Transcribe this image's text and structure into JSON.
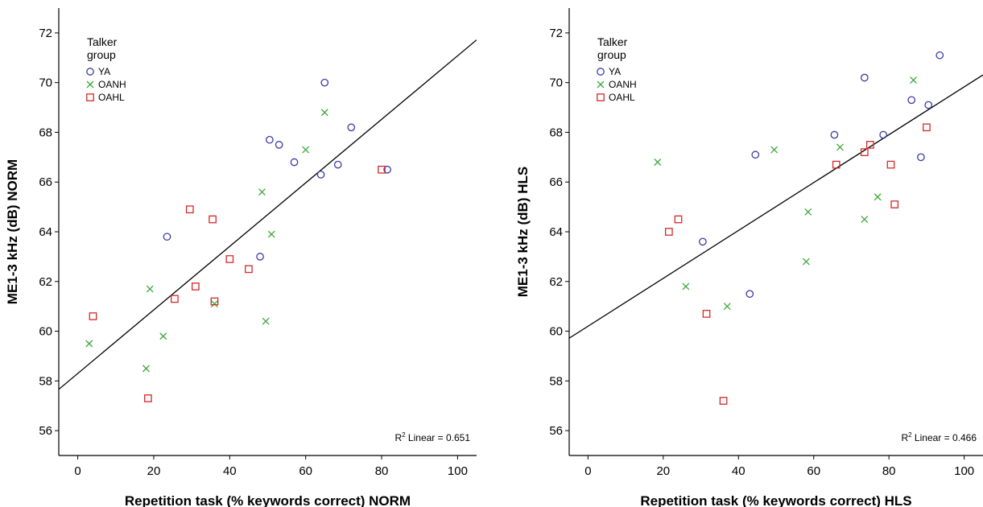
{
  "chart_data": [
    {
      "type": "scatter",
      "xlabel": "Repetition task (% keywords correct) NORM",
      "ylabel": "ME1-3 kHz (dB) NORM",
      "xlim": [
        -5,
        105
      ],
      "ylim": [
        55,
        73
      ],
      "x_ticks": [
        0,
        20,
        40,
        60,
        80,
        100
      ],
      "y_ticks": [
        56,
        58,
        60,
        62,
        64,
        66,
        68,
        70,
        72
      ],
      "legend": {
        "title_line1": "Talker",
        "title_line2": "group",
        "position": "top-left",
        "entries": [
          {
            "label": "YA",
            "marker": "circle",
            "color": "#3a3aa8"
          },
          {
            "label": "OANH",
            "marker": "x",
            "color": "#3aa83a"
          },
          {
            "label": "OAHL",
            "marker": "square",
            "color": "#d62828"
          }
        ]
      },
      "fit_line": {
        "intercept": 58.3,
        "slope": 0.1278
      },
      "r2_label": "R",
      "r2_sup": "2",
      "r2_text": " Linear = 0.651",
      "series": [
        {
          "name": "YA",
          "points": [
            [
              23.5,
              63.8
            ],
            [
              48,
              63
            ],
            [
              50.5,
              67.7
            ],
            [
              53,
              67.5
            ],
            [
              57,
              66.8
            ],
            [
              64,
              66.3
            ],
            [
              65,
              70
            ],
            [
              68.5,
              66.7
            ],
            [
              72,
              68.2
            ],
            [
              81.5,
              66.5
            ]
          ]
        },
        {
          "name": "OANH",
          "points": [
            [
              3,
              59.5
            ],
            [
              18,
              58.5
            ],
            [
              19,
              61.7
            ],
            [
              22.5,
              59.8
            ],
            [
              36,
              61.1
            ],
            [
              48.5,
              65.6
            ],
            [
              49.5,
              60.4
            ],
            [
              51,
              63.9
            ],
            [
              60,
              67.3
            ],
            [
              65,
              68.8
            ]
          ]
        },
        {
          "name": "OAHL",
          "points": [
            [
              4,
              60.6
            ],
            [
              18.5,
              57.3
            ],
            [
              25.5,
              61.3
            ],
            [
              29.5,
              64.9
            ],
            [
              31,
              61.8
            ],
            [
              35.5,
              64.5
            ],
            [
              36,
              61.2
            ],
            [
              40,
              62.9
            ],
            [
              45,
              62.5
            ],
            [
              80,
              66.5
            ]
          ]
        }
      ]
    },
    {
      "type": "scatter",
      "xlabel": "Repetition task (% keywords correct) HLS",
      "ylabel": "ME1-3 kHz (dB) HLS",
      "xlim": [
        -5,
        105
      ],
      "ylim": [
        55,
        73
      ],
      "x_ticks": [
        0,
        20,
        40,
        60,
        80,
        100
      ],
      "y_ticks": [
        56,
        58,
        60,
        62,
        64,
        66,
        68,
        70,
        72
      ],
      "legend": {
        "title_line1": "Talker",
        "title_line2": "group",
        "position": "top-left",
        "entries": [
          {
            "label": "YA",
            "marker": "circle",
            "color": "#3a3aa8"
          },
          {
            "label": "OANH",
            "marker": "x",
            "color": "#3aa83a"
          },
          {
            "label": "OAHL",
            "marker": "square",
            "color": "#d62828"
          }
        ]
      },
      "fit_line": {
        "intercept": 60.2,
        "slope": 0.0963
      },
      "r2_label": "R",
      "r2_sup": "2",
      "r2_text": " Linear = 0.466",
      "series": [
        {
          "name": "YA",
          "points": [
            [
              30.5,
              63.6
            ],
            [
              43,
              61.5
            ],
            [
              44.5,
              67.1
            ],
            [
              65.5,
              67.9
            ],
            [
              73.5,
              70.2
            ],
            [
              78.5,
              67.9
            ],
            [
              86,
              69.3
            ],
            [
              88.5,
              67
            ],
            [
              90.5,
              69.1
            ],
            [
              93.5,
              71.1
            ]
          ]
        },
        {
          "name": "OANH",
          "points": [
            [
              18.5,
              66.8
            ],
            [
              26,
              61.8
            ],
            [
              37,
              61
            ],
            [
              49.5,
              67.3
            ],
            [
              58,
              62.8
            ],
            [
              58.5,
              64.8
            ],
            [
              67,
              67.4
            ],
            [
              73.5,
              64.5
            ],
            [
              77,
              65.4
            ],
            [
              86.5,
              70.1
            ]
          ]
        },
        {
          "name": "OAHL",
          "points": [
            [
              21.5,
              64
            ],
            [
              24,
              64.5
            ],
            [
              31.5,
              60.7
            ],
            [
              36,
              57.2
            ],
            [
              66,
              66.7
            ],
            [
              73.5,
              67.2
            ],
            [
              75,
              67.5
            ],
            [
              80.5,
              66.7
            ],
            [
              81.5,
              65.1
            ],
            [
              90,
              68.2
            ]
          ]
        }
      ]
    }
  ]
}
